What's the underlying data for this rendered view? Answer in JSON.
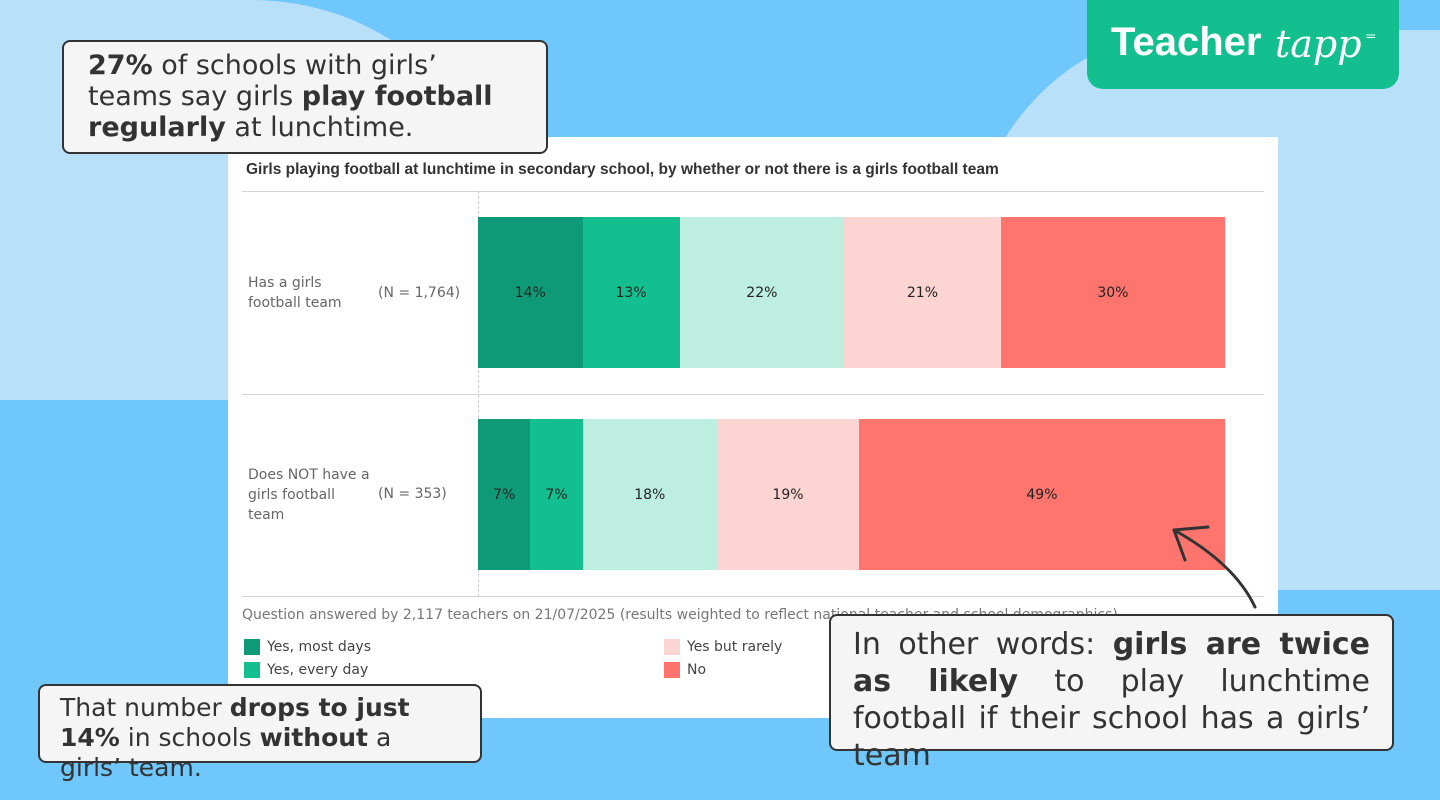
{
  "logo": {
    "text_main": "Teacher",
    "text_script": "tapp"
  },
  "callouts": {
    "top_left": {
      "pct": "27%",
      "t1": " of schools with girls’ teams say girls ",
      "bold": "play football regularly",
      "t2": " at lunchtime."
    },
    "bottom_left": {
      "t1": "That number ",
      "bold1": "drops to just 14%",
      "t2": " in schools ",
      "bold2": "without",
      "t3": " a girls’ team."
    },
    "bottom_right": {
      "t1": "In other words: ",
      "bold1": "girls are twice as likely",
      "t2": " to play lunchtime football if their school has a girls’ team"
    }
  },
  "chart_data": {
    "type": "bar",
    "stacked": true,
    "orientation": "horizontal",
    "title": "Girls playing football at lunchtime in secondary school, by whether or not there is a girls football team",
    "categories": [
      "Has a girls football team",
      "Does NOT have a girls football team"
    ],
    "n_labels": [
      "(N = 1,764)",
      "(N = 353)"
    ],
    "series": [
      {
        "name": "Yes, most days",
        "color": "#0e9a76",
        "values": [
          14,
          7
        ]
      },
      {
        "name": "Yes, every day",
        "color": "#14bf8f",
        "values": [
          13,
          7
        ]
      },
      {
        "name": "",
        "color": "#bdeee0",
        "values": [
          22,
          18
        ]
      },
      {
        "name": "Yes but rarely",
        "color": "#fcd5d3",
        "values": [
          21,
          19
        ]
      },
      {
        "name": "No",
        "color": "#ff756e",
        "values": [
          30,
          49
        ]
      }
    ],
    "xlim": [
      0,
      100
    ],
    "footnote": "Question answered by 2,117 teachers on 21/07/2025 (results weighted to reflect national teacher and school demographics)"
  }
}
